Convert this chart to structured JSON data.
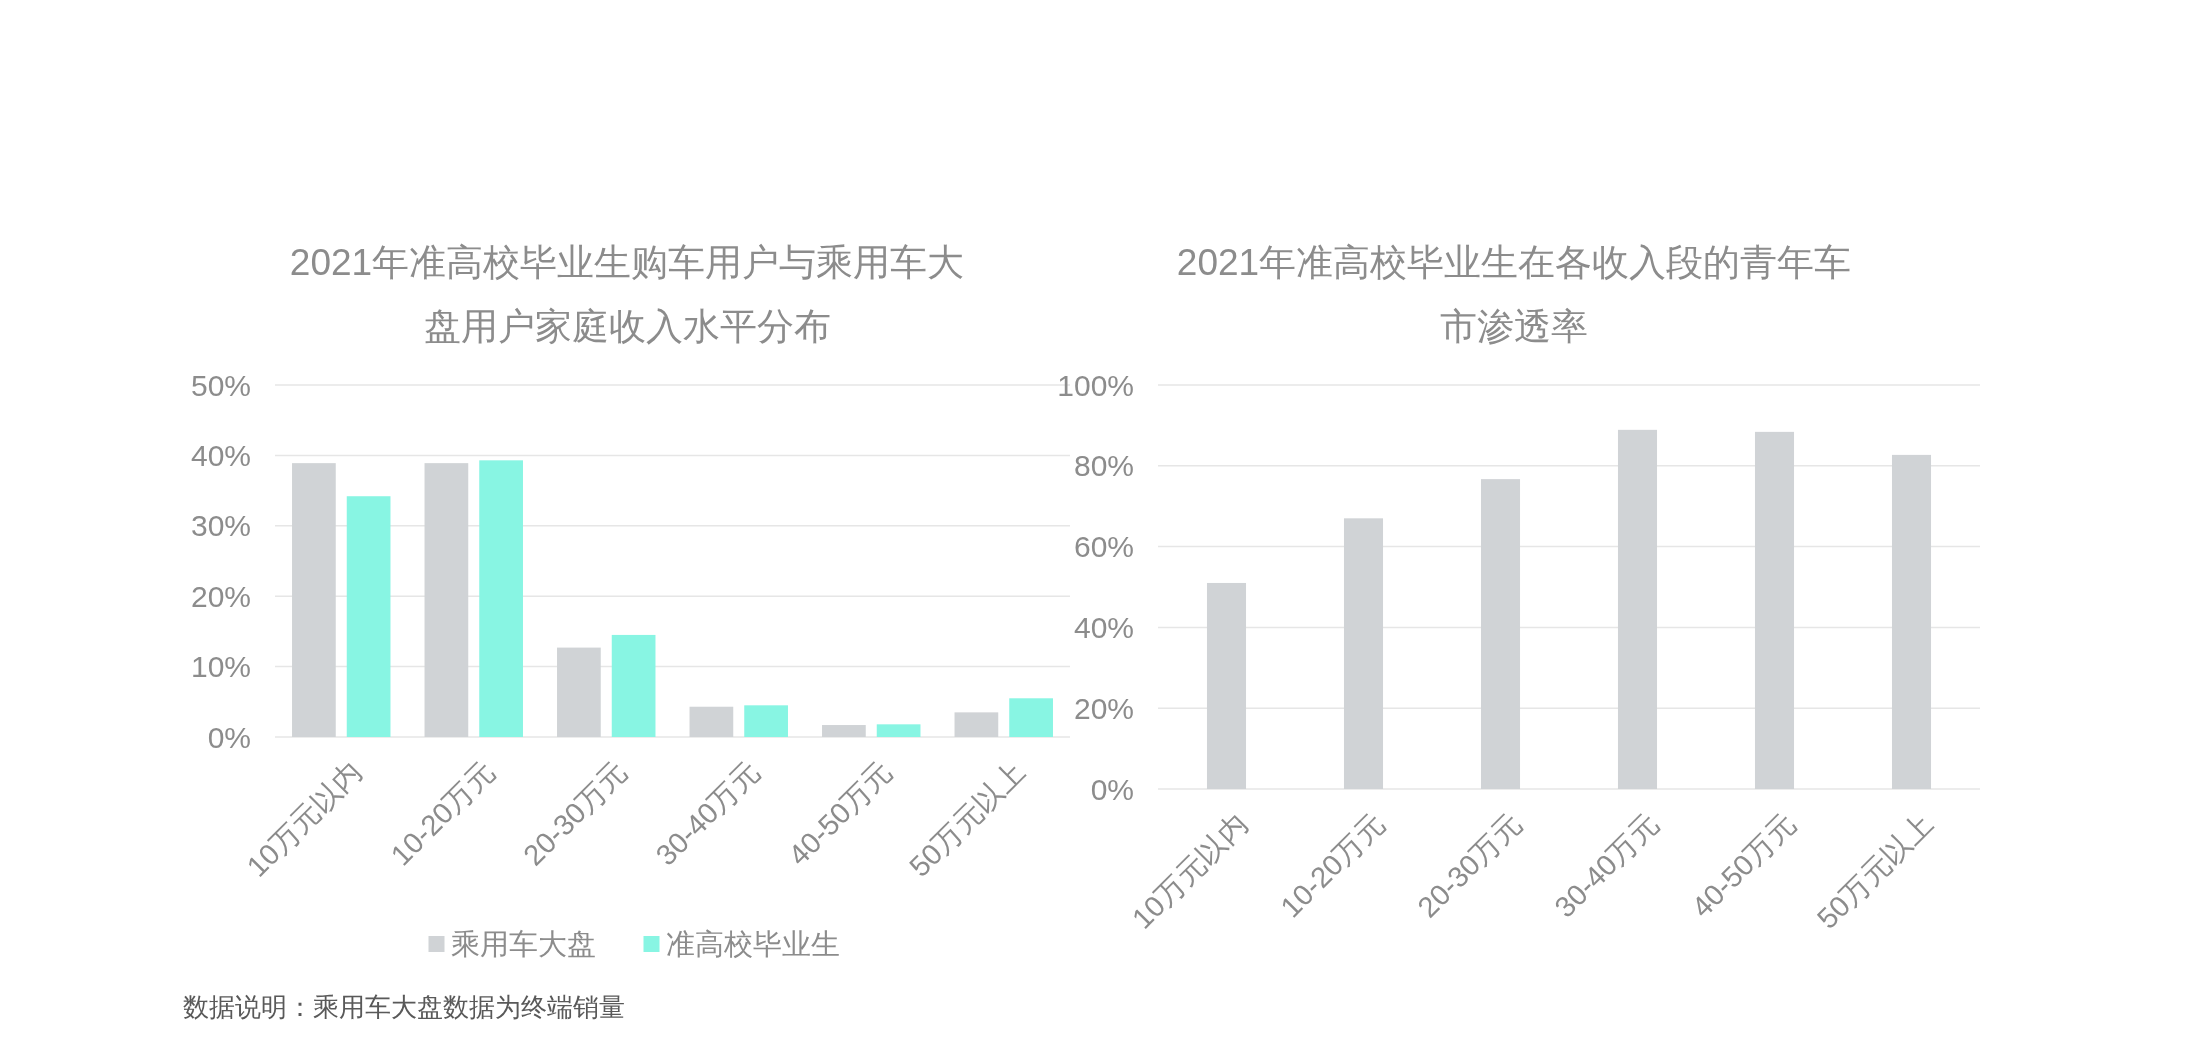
{
  "chart_data": [
    {
      "type": "bar",
      "title": "2021年准高校毕业生购车用户与乘用车大盘用户家庭收入水平分布",
      "categories": [
        "10万元以内",
        "10-20万元",
        "20-30万元",
        "30-40万元",
        "40-50万元",
        "50万元以上"
      ],
      "series": [
        {
          "name": "乘用车大盘",
          "color": "#d0d3d6",
          "values": [
            38.9,
            38.9,
            12.7,
            4.3,
            1.7,
            3.5
          ]
        },
        {
          "name": "准高校毕业生",
          "color": "#88f5e3",
          "values": [
            34.2,
            39.3,
            14.5,
            4.5,
            1.8,
            5.5
          ]
        }
      ],
      "ylim": [
        0,
        50
      ],
      "yticks": [
        {
          "value": 0,
          "label": "0%"
        },
        {
          "value": 10,
          "label": "10%"
        },
        {
          "value": 20,
          "label": "20%"
        },
        {
          "value": 30,
          "label": "30%"
        },
        {
          "value": 40,
          "label": "40%"
        },
        {
          "value": 50,
          "label": "50%"
        }
      ],
      "grid": "y",
      "legend": "bottom",
      "annotations": [
        "数据说明：乘用车大盘数据为终端销量"
      ]
    },
    {
      "type": "bar",
      "title": "2021年准高校毕业生在各收入段的青年车市渗透率",
      "categories": [
        "10万元以内",
        "10-20万元",
        "20-30万元",
        "30-40万元",
        "40-50万元",
        "50万元以上"
      ],
      "values": [
        51.0,
        67.0,
        76.7,
        88.9,
        88.4,
        82.7
      ],
      "color": "#d0d3d6",
      "ylim": [
        0,
        100
      ],
      "yticks": [
        {
          "value": 0,
          "label": "0%"
        },
        {
          "value": 20,
          "label": "20%"
        },
        {
          "value": 40,
          "label": "40%"
        },
        {
          "value": 60,
          "label": "60%"
        },
        {
          "value": 80,
          "label": "80%"
        },
        {
          "value": 100,
          "label": "100%"
        }
      ],
      "grid": "y"
    }
  ]
}
